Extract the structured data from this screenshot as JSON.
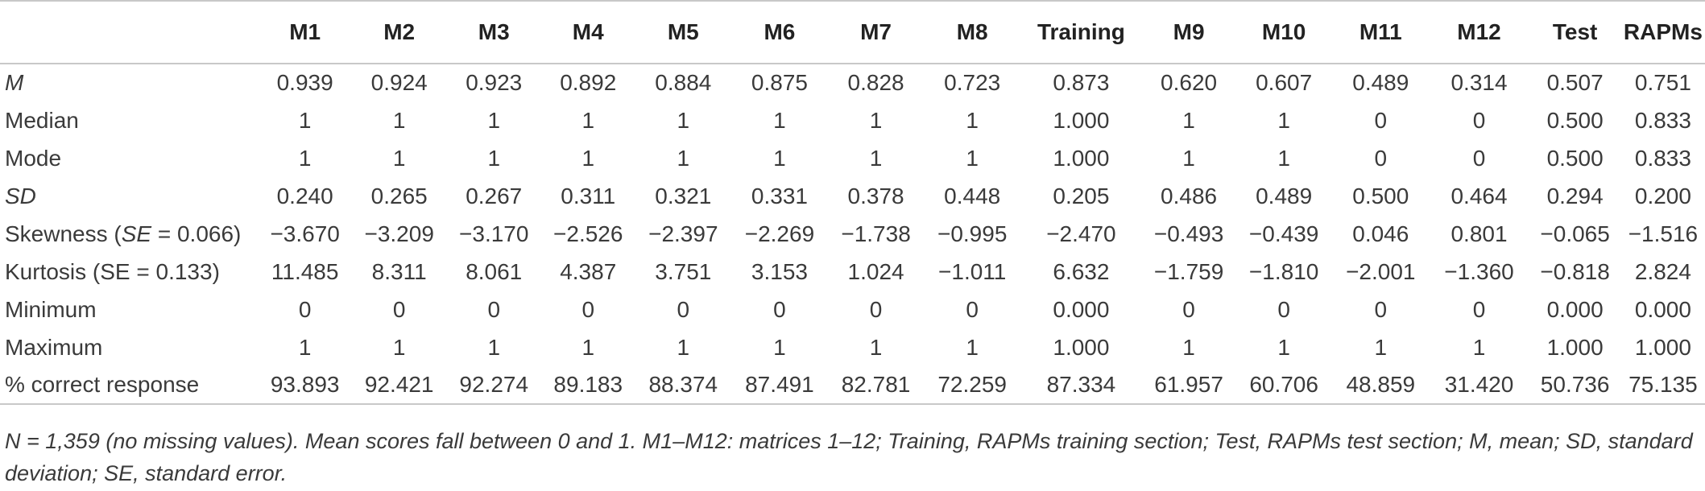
{
  "columns": [
    "M1",
    "M2",
    "M3",
    "M4",
    "M5",
    "M6",
    "M7",
    "M8",
    "Training",
    "M9",
    "M10",
    "M11",
    "M12",
    "Test",
    "RAPMs"
  ],
  "rows": [
    {
      "label": "M",
      "label_italic": true,
      "values": [
        "0.939",
        "0.924",
        "0.923",
        "0.892",
        "0.884",
        "0.875",
        "0.828",
        "0.723",
        "0.873",
        "0.620",
        "0.607",
        "0.489",
        "0.314",
        "0.507",
        "0.751"
      ]
    },
    {
      "label": "Median",
      "values": [
        "1",
        "1",
        "1",
        "1",
        "1",
        "1",
        "1",
        "1",
        "1.000",
        "1",
        "1",
        "0",
        "0",
        "0.500",
        "0.833"
      ]
    },
    {
      "label": "Mode",
      "values": [
        "1",
        "1",
        "1",
        "1",
        "1",
        "1",
        "1",
        "1",
        "1.000",
        "1",
        "1",
        "0",
        "0",
        "0.500",
        "0.833"
      ]
    },
    {
      "label": "SD",
      "label_italic": true,
      "values": [
        "0.240",
        "0.265",
        "0.267",
        "0.311",
        "0.321",
        "0.331",
        "0.378",
        "0.448",
        "0.205",
        "0.486",
        "0.489",
        "0.500",
        "0.464",
        "0.294",
        "0.200"
      ]
    },
    {
      "label_pre": "Skewness (",
      "label_it": "SE",
      "label_post": " = 0.066)",
      "values": [
        "−3.670",
        "−3.209",
        "−3.170",
        "−2.526",
        "−2.397",
        "−2.269",
        "−1.738",
        "−0.995",
        "−2.470",
        "−0.493",
        "−0.439",
        "0.046",
        "0.801",
        "−0.065",
        "−1.516"
      ]
    },
    {
      "label": "Kurtosis (SE = 0.133)",
      "values": [
        "11.485",
        "8.311",
        "8.061",
        "4.387",
        "3.751",
        "3.153",
        "1.024",
        "−1.011",
        "6.632",
        "−1.759",
        "−1.810",
        "−2.001",
        "−1.360",
        "−0.818",
        "2.824"
      ]
    },
    {
      "label": "Minimum",
      "values": [
        "0",
        "0",
        "0",
        "0",
        "0",
        "0",
        "0",
        "0",
        "0.000",
        "0",
        "0",
        "0",
        "0",
        "0.000",
        "0.000"
      ]
    },
    {
      "label": "Maximum",
      "values": [
        "1",
        "1",
        "1",
        "1",
        "1",
        "1",
        "1",
        "1",
        "1.000",
        "1",
        "1",
        "1",
        "1",
        "1.000",
        "1.000"
      ]
    },
    {
      "label": "% correct response",
      "values": [
        "93.893",
        "92.421",
        "92.274",
        "89.183",
        "88.374",
        "87.491",
        "82.781",
        "72.259",
        "87.334",
        "61.957",
        "60.706",
        "48.859",
        "31.420",
        "50.736",
        "75.135"
      ]
    }
  ],
  "footnote": "N = 1,359 (no missing values). Mean scores fall between 0 and 1. M1–M12: matrices 1–12; Training, RAPMs training section; Test, RAPMs test section; M, mean; SD, standard deviation; SE, standard error."
}
